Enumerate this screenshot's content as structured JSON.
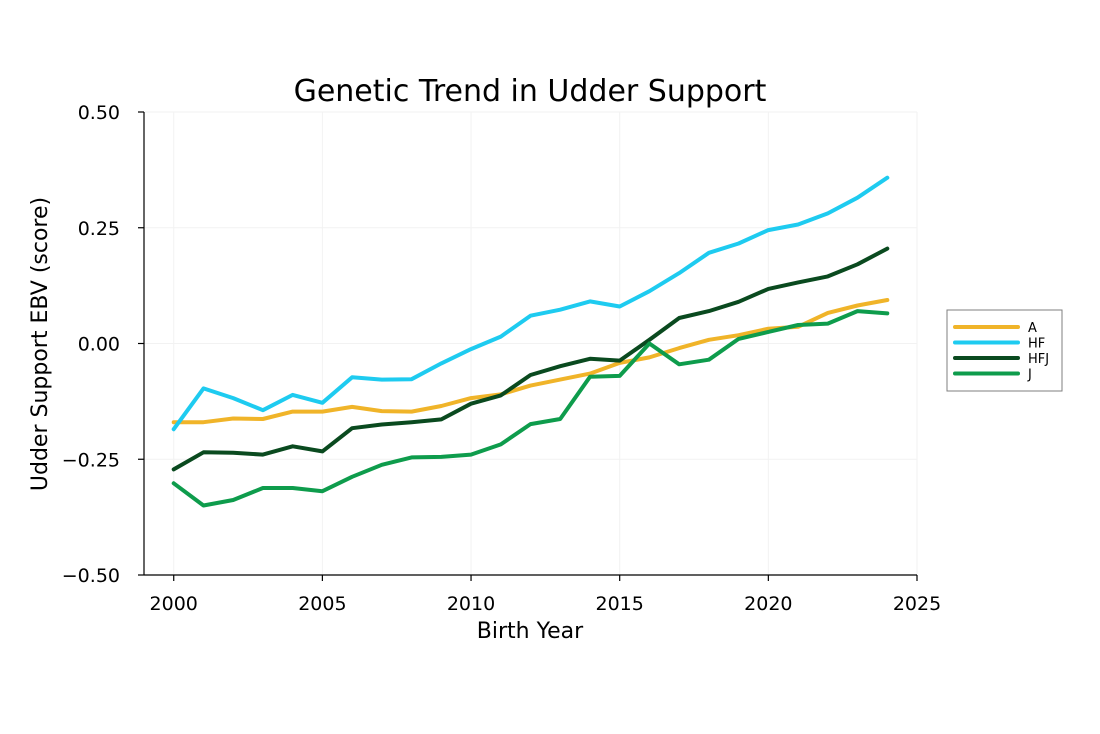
{
  "chart_data": {
    "type": "line",
    "title": "Genetic Trend in Udder Support",
    "xlabel": "Birth Year",
    "ylabel": "Udder Support EBV (score)",
    "xlim": [
      1999,
      2025
    ],
    "ylim": [
      -0.5,
      0.5
    ],
    "x_ticks": [
      2000,
      2005,
      2010,
      2015,
      2020,
      2025
    ],
    "y_ticks": [
      -0.5,
      -0.25,
      0.0,
      0.25,
      0.5
    ],
    "y_tick_labels": [
      "−0.50",
      "−0.25",
      "0.00",
      "0.25",
      "0.50"
    ],
    "grid": true,
    "legend_position": "right",
    "x": [
      2000,
      2001,
      2002,
      2003,
      2004,
      2005,
      2006,
      2007,
      2008,
      2009,
      2010,
      2011,
      2012,
      2013,
      2014,
      2015,
      2016,
      2017,
      2018,
      2019,
      2020,
      2021,
      2022,
      2023,
      2024
    ],
    "series": [
      {
        "name": "A",
        "color": "#f0b429",
        "values": [
          -0.17,
          -0.17,
          -0.162,
          -0.163,
          -0.147,
          -0.147,
          -0.137,
          -0.146,
          -0.147,
          -0.135,
          -0.118,
          -0.11,
          -0.091,
          -0.078,
          -0.065,
          -0.042,
          -0.03,
          -0.01,
          0.008,
          0.018,
          0.032,
          0.036,
          0.066,
          0.082,
          0.094
        ]
      },
      {
        "name": "HF",
        "color": "#1ecbf0",
        "values": [
          -0.185,
          -0.097,
          -0.118,
          -0.144,
          -0.111,
          -0.128,
          -0.073,
          -0.078,
          -0.077,
          -0.043,
          -0.012,
          0.015,
          0.06,
          0.073,
          0.091,
          0.08,
          0.113,
          0.152,
          0.196,
          0.216,
          0.245,
          0.257,
          0.281,
          0.315,
          0.358
        ]
      },
      {
        "name": "HFJ",
        "color": "#0a4a1f",
        "values": [
          -0.272,
          -0.235,
          -0.236,
          -0.24,
          -0.222,
          -0.233,
          -0.183,
          -0.175,
          -0.17,
          -0.164,
          -0.13,
          -0.112,
          -0.068,
          -0.049,
          -0.033,
          -0.037,
          0.008,
          0.055,
          0.07,
          0.09,
          0.118,
          0.132,
          0.145,
          0.171,
          0.205
        ]
      },
      {
        "name": "J",
        "color": "#0e9c4c",
        "values": [
          -0.302,
          -0.35,
          -0.338,
          -0.312,
          -0.312,
          -0.319,
          -0.288,
          -0.262,
          -0.246,
          -0.245,
          -0.24,
          -0.218,
          -0.174,
          -0.163,
          -0.072,
          -0.07,
          0.0,
          -0.045,
          -0.035,
          0.01,
          0.025,
          0.04,
          0.043,
          0.07,
          0.065
        ]
      }
    ]
  }
}
